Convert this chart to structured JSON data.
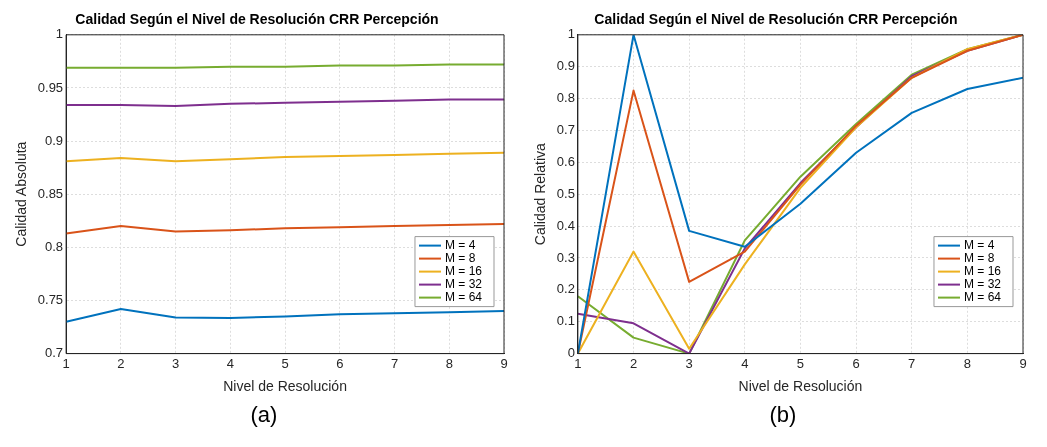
{
  "chart_data": [
    {
      "type": "line",
      "title": "Calidad Según el Nivel de Resolución CRR Percepción",
      "xlabel": "Nivel de Resolución",
      "ylabel": "Calidad Absoluta",
      "annotations": [
        "(a)"
      ],
      "x": [
        1,
        2,
        3,
        4,
        5,
        6,
        7,
        8,
        9
      ],
      "xlim": [
        1,
        9
      ],
      "xticks": [
        1,
        2,
        3,
        4,
        5,
        6,
        7,
        8,
        9
      ],
      "ylim": [
        0.7,
        1
      ],
      "yticks": [
        0.7,
        0.75,
        0.8,
        0.85,
        0.9,
        0.95,
        1
      ],
      "grid": true,
      "legend": "bottom right",
      "series": [
        {
          "name": "M = 4",
          "color": "#0072bd",
          "values": [
            0.73,
            0.742,
            0.734,
            0.7335,
            0.735,
            0.737,
            0.738,
            0.739,
            0.74
          ]
        },
        {
          "name": "M = 8",
          "color": "#d95319",
          "values": [
            0.813,
            0.82,
            0.815,
            0.816,
            0.818,
            0.819,
            0.82,
            0.821,
            0.822
          ]
        },
        {
          "name": "M = 16",
          "color": "#edb120",
          "values": [
            0.881,
            0.884,
            0.881,
            0.883,
            0.885,
            0.886,
            0.887,
            0.888,
            0.889
          ]
        },
        {
          "name": "M = 32",
          "color": "#7e2f8e",
          "values": [
            0.934,
            0.934,
            0.933,
            0.935,
            0.936,
            0.937,
            0.938,
            0.939,
            0.939
          ]
        },
        {
          "name": "M = 64",
          "color": "#77ac30",
          "values": [
            0.969,
            0.969,
            0.969,
            0.97,
            0.97,
            0.971,
            0.971,
            0.972,
            0.972
          ]
        }
      ]
    },
    {
      "type": "line",
      "title": "Calidad Según el Nivel de Resolución CRR Percepción",
      "xlabel": "Nivel de Resolución",
      "ylabel": "Calidad Relativa",
      "annotations": [
        "(b)"
      ],
      "x": [
        1,
        2,
        3,
        4,
        5,
        6,
        7,
        8,
        9
      ],
      "xlim": [
        1,
        9
      ],
      "xticks": [
        1,
        2,
        3,
        4,
        5,
        6,
        7,
        8,
        9
      ],
      "ylim": [
        0,
        1
      ],
      "yticks": [
        0,
        0.1,
        0.2,
        0.3,
        0.4,
        0.5,
        0.6,
        0.7,
        0.8,
        0.9,
        1
      ],
      "grid": true,
      "legend": "bottom right",
      "series": [
        {
          "name": "M = 4",
          "color": "#0072bd",
          "values": [
            0,
            1.0,
            0.385,
            0.335,
            0.47,
            0.63,
            0.755,
            0.83,
            0.865
          ]
        },
        {
          "name": "M = 8",
          "color": "#d95319",
          "values": [
            0,
            0.825,
            0.225,
            0.32,
            0.53,
            0.715,
            0.865,
            0.95,
            1.0
          ]
        },
        {
          "name": "M = 16",
          "color": "#edb120",
          "values": [
            0,
            0.32,
            0.015,
            0.28,
            0.52,
            0.71,
            0.865,
            0.955,
            1.0
          ]
        },
        {
          "name": "M = 32",
          "color": "#7e2f8e",
          "values": [
            0.125,
            0.095,
            0,
            0.33,
            0.535,
            0.71,
            0.87,
            0.95,
            1.0
          ]
        },
        {
          "name": "M = 64",
          "color": "#77ac30",
          "values": [
            0.18,
            0.05,
            0,
            0.355,
            0.555,
            0.72,
            0.875,
            0.955,
            1.0
          ]
        }
      ]
    }
  ]
}
